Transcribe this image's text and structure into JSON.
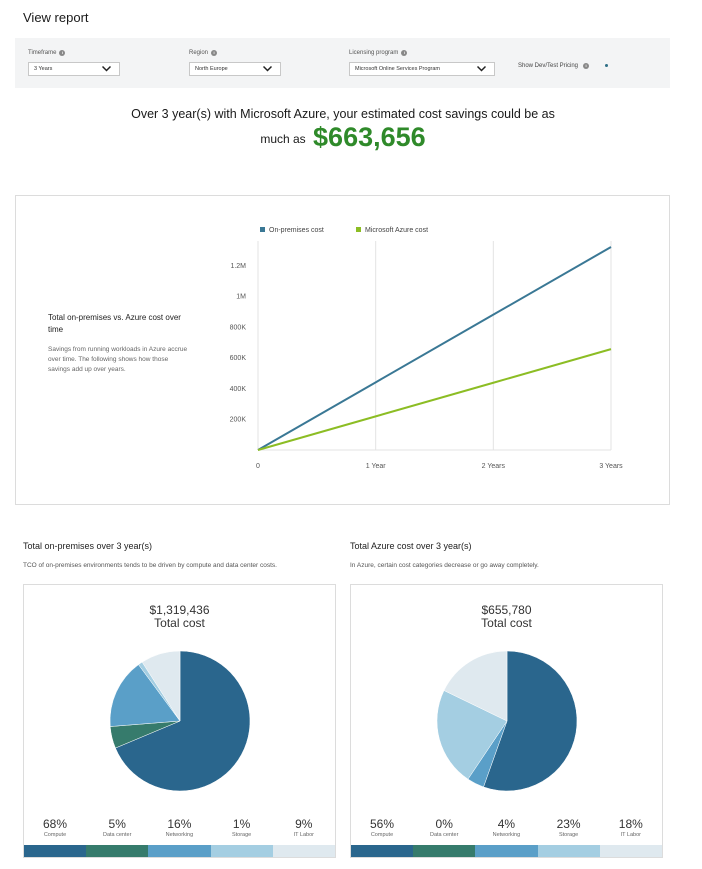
{
  "page": {
    "title": "View report"
  },
  "filters": {
    "timeframe": {
      "label": "Timeframe",
      "value": "3 Years"
    },
    "region": {
      "label": "Region",
      "value": "North Europe"
    },
    "licensing": {
      "label": "Licensing program",
      "value": "Microsoft Online Services Program"
    },
    "dev_test": {
      "label": "Show Dev/Test Pricing",
      "enabled": false
    }
  },
  "savings": {
    "line1": "Over 3 year(s) with Microsoft Azure, your estimated cost savings could be as",
    "prefix": "much as",
    "amount": "$663,656"
  },
  "line_chart": {
    "title": "Total on-premises vs. Azure cost over time",
    "description": "Savings from running workloads in Azure accrue over time. The following shows how those savings add up over years."
  },
  "chart_data": {
    "type": "line",
    "x": [
      "0",
      "1 Year",
      "2 Years",
      "3 Years"
    ],
    "series": [
      {
        "name": "On-premises cost",
        "color": "#3a7895",
        "values": [
          0,
          439812,
          879624,
          1319436
        ]
      },
      {
        "name": "Microsoft Azure cost",
        "color": "#8cbd24",
        "values": [
          0,
          218593,
          437187,
          655780
        ]
      }
    ],
    "yticks": [
      "200K",
      "400K",
      "600K",
      "800K",
      "1M",
      "1.2M"
    ],
    "ylim": [
      0,
      1319436
    ],
    "grid": true,
    "legend": "top"
  },
  "onprem": {
    "title": "Total on-premises over 3 year(s)",
    "subtitle": "TCO of on-premises environments tends to be driven by compute and data center costs.",
    "total": "$1,319,436",
    "total_label": "Total cost",
    "slices": [
      {
        "name": "Compute",
        "pct": "68%",
        "value": 68,
        "color": "#2a668d"
      },
      {
        "name": "Data center",
        "pct": "5%",
        "value": 5,
        "color": "#367b6c"
      },
      {
        "name": "Networking",
        "pct": "16%",
        "value": 16,
        "color": "#5a9fc8"
      },
      {
        "name": "Storage",
        "pct": "1%",
        "value": 1,
        "color": "#a4cee2"
      },
      {
        "name": "IT Labor",
        "pct": "9%",
        "value": 9,
        "color": "#dfe9ef"
      }
    ]
  },
  "azure": {
    "title": "Total Azure cost over 3 year(s)",
    "subtitle": "In Azure, certain cost categories decrease or go away completely.",
    "total": "$655,780",
    "total_label": "Total cost",
    "slices": [
      {
        "name": "Compute",
        "pct": "56%",
        "value": 56,
        "color": "#2a668d"
      },
      {
        "name": "Data center",
        "pct": "0%",
        "value": 0,
        "color": "#367b6c"
      },
      {
        "name": "Networking",
        "pct": "4%",
        "value": 4,
        "color": "#5a9fc8"
      },
      {
        "name": "Storage",
        "pct": "23%",
        "value": 23,
        "color": "#a4cee2"
      },
      {
        "name": "IT Labor",
        "pct": "18%",
        "value": 18,
        "color": "#dfe9ef"
      }
    ]
  }
}
